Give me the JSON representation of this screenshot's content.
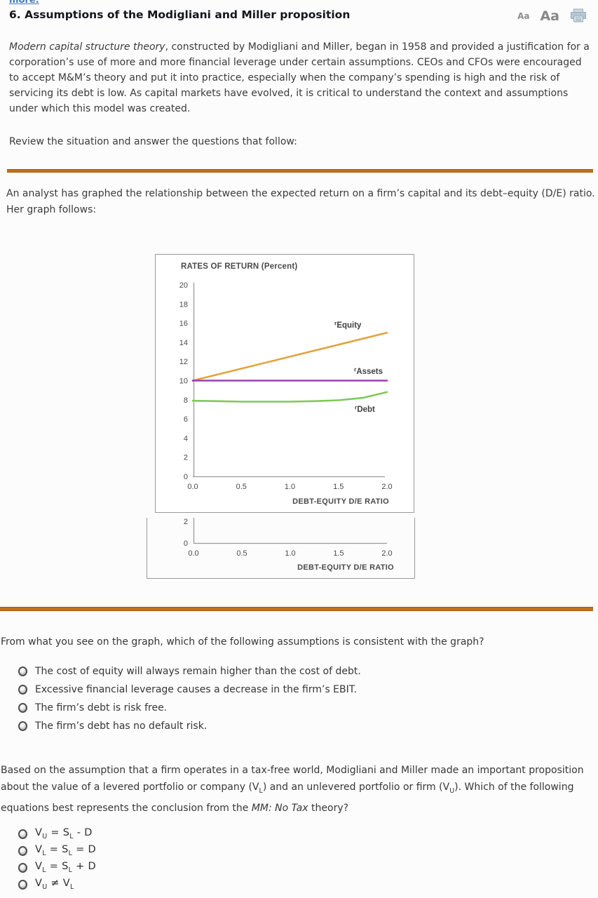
{
  "page": {
    "top_link_label": "more.",
    "header": {
      "title": "6.  Assumptions of the Modigliani and Miller proposition",
      "text_size_small": "Aa",
      "text_size_large": "Aa"
    },
    "intro_paragraph": "*{Modern capital structure theory}, constructed by Modigliani and Miller, began in 1958 and provided a justification for a corporation’s use of more and more financial leverage under certain assumptions. CEOs and CFOs were encouraged to accept M&M’s theory and put it into practice, especially when the company’s spending is high and the risk of servicing its debt is low. As capital markets have evolved, it is critical to understand the context and assumptions under which this model was created.",
    "review_prompt": "Review the situation and answer the questions that follow:",
    "analyst_text": "An analyst has graphed the relationship between the expected return on a firm’s capital and its debt–equity (D/E) ratio. Her graph follows:",
    "divider_color": "#C2701C"
  },
  "chart_data": [
    {
      "type": "line",
      "title": "RATES OF RETURN (Percent)",
      "xlabel": "DEBT-EQUITY D/E RATIO",
      "xlim": [
        0.0,
        2.0
      ],
      "ylim": [
        0,
        20
      ],
      "grid": false,
      "legend": "inline-labels",
      "y_ticks": [
        20,
        18,
        16,
        14,
        12,
        10,
        8,
        6,
        4,
        2,
        0
      ],
      "x_ticks": [
        "0.0",
        "0.5",
        "1.0",
        "1.5",
        "2.0"
      ],
      "series": [
        {
          "name": "equity",
          "label_prefix": "r",
          "label": "Equity",
          "color": "#E2A33F",
          "x": [
            0,
            2.0
          ],
          "y": [
            10,
            15
          ]
        },
        {
          "name": "assets",
          "label_prefix": "r",
          "label": "Assets",
          "color": "#9B3FAF",
          "x": [
            0,
            2.0
          ],
          "y": [
            10,
            10
          ]
        },
        {
          "name": "debt",
          "label_prefix": "r",
          "label": "Debt",
          "color": "#7FC957",
          "x": [
            0,
            0.25,
            0.5,
            0.75,
            1.0,
            1.25,
            1.5,
            1.75,
            2.0
          ],
          "y": [
            7.9,
            7.85,
            7.8,
            7.8,
            7.8,
            7.85,
            7.95,
            8.2,
            8.8
          ]
        }
      ]
    },
    {
      "type": "line",
      "visible_portion": "bottom of chart clipped by panel edge",
      "xlabel": "DEBT-EQUITY D/E RATIO",
      "x_ticks": [
        "0.0",
        "0.5",
        "1.0",
        "1.5",
        "2.0"
      ],
      "y_ticks_visible": [
        "2",
        "0"
      ]
    }
  ],
  "questions": [
    {
      "prompt": "From what you see on the graph, which of the following assumptions is consistent with the graph?",
      "options": [
        "The cost of equity will always remain higher than the cost of debt.",
        "Excessive financial leverage causes a decrease in the firm’s EBIT.",
        "The firm’s debt is risk free.",
        "The firm’s debt has no default risk."
      ]
    },
    {
      "prompt": "Based on the assumption that a firm operates in a tax-free world, Modigliani and Miller made an important proposition about the value of a levered portfolio or company (V_{L}) and an unlevered portfolio or firm (V_{U}). Which of the following equations best represents the conclusion from the *{MM: No Tax} theory?",
      "options": [
        "V_{U} = S_{L} - D",
        "V_{L} = S_{L} = D",
        "V_{L} = S_{L} + D",
        "V_{U} ≠ V_{L}"
      ]
    }
  ]
}
